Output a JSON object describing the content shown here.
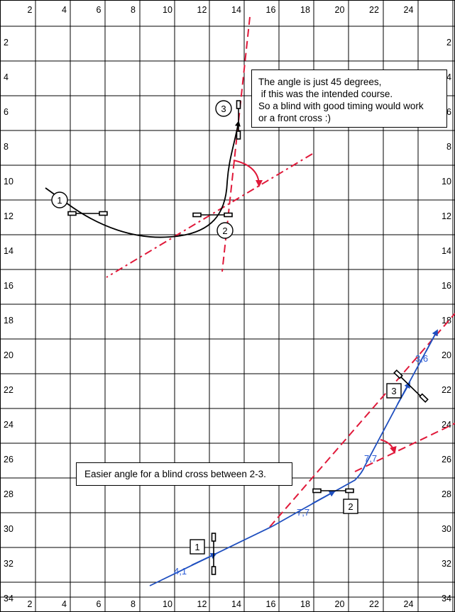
{
  "grid": {
    "top_labels": [
      "2",
      "4",
      "6",
      "8",
      "10",
      "12",
      "14",
      "16",
      "18",
      "20",
      "22",
      "24"
    ],
    "bottom_labels": [
      "2",
      "4",
      "6",
      "8",
      "10",
      "12",
      "14",
      "16",
      "18",
      "20",
      "22",
      "24"
    ],
    "left_labels": [
      "2",
      "4",
      "6",
      "8",
      "10",
      "12",
      "14",
      "16",
      "18",
      "20",
      "22",
      "24",
      "26",
      "28",
      "30",
      "32",
      "34"
    ],
    "right_labels": [
      "2",
      "4",
      "6",
      "8",
      "10",
      "12",
      "14",
      "16",
      "18",
      "20",
      "22",
      "24",
      "26",
      "28",
      "30",
      "32",
      "34"
    ]
  },
  "notes": {
    "top_lines": [
      "The angle is just 45 degrees,",
      " if this was the intended course.",
      "So a blind with good timing would work",
      "or a front cross :)"
    ],
    "bottom_text": "Easier angle for a blind cross between 2-3."
  },
  "course_a": {
    "markers": [
      "1",
      "2",
      "3"
    ]
  },
  "course_b": {
    "markers": [
      "1",
      "2",
      "3"
    ],
    "distances": [
      "4,1",
      "7,7",
      "7,7",
      "3,6"
    ]
  },
  "colors": {
    "grid": "#000000",
    "path_a": "#000000",
    "path_b": "#1f4fbf",
    "angle_lines": "#e0193a",
    "distance_text": "#2a5bd7"
  }
}
